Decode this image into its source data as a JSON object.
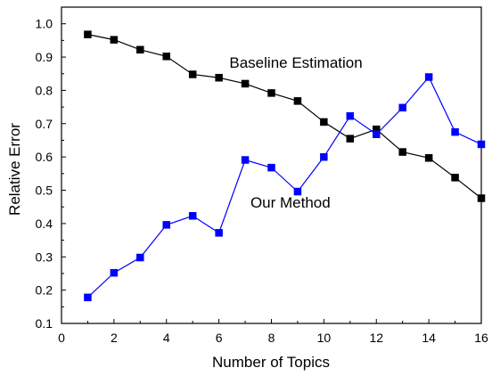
{
  "chart_data": {
    "type": "line",
    "title": "",
    "xlabel": "Number of Topics",
    "ylabel": "Relative Error",
    "xlim": [
      0,
      16
    ],
    "ylim": [
      0.1,
      1.05
    ],
    "x_ticks": [
      0,
      2,
      4,
      6,
      8,
      10,
      12,
      14,
      16
    ],
    "y_ticks": [
      0.1,
      0.2,
      0.3,
      0.4,
      0.5,
      0.6,
      0.7,
      0.8,
      0.9,
      1.0
    ],
    "x_tick_labels": [
      "0",
      "2",
      "4",
      "6",
      "8",
      "10",
      "12",
      "14",
      "16"
    ],
    "y_tick_labels": [
      "0.1",
      "0.2",
      "0.3",
      "0.4",
      "0.5",
      "0.6",
      "0.7",
      "0.8",
      "0.9",
      "1.0"
    ],
    "grid": false,
    "legend": "none",
    "x": [
      1,
      2,
      3,
      4,
      5,
      6,
      7,
      8,
      9,
      10,
      11,
      12,
      13,
      14,
      15,
      16
    ],
    "series": [
      {
        "name": "Baseline Estimation",
        "color": "#000000",
        "marker": "square",
        "values": [
          0.968,
          0.952,
          0.922,
          0.902,
          0.848,
          0.838,
          0.82,
          0.792,
          0.768,
          0.705,
          0.655,
          0.683,
          0.615,
          0.597,
          0.538,
          0.476
        ]
      },
      {
        "name": "Our Method",
        "color": "#0000ff",
        "marker": "square",
        "values": [
          0.178,
          0.252,
          0.298,
          0.396,
          0.423,
          0.372,
          0.591,
          0.568,
          0.496,
          0.6,
          0.723,
          0.668,
          0.748,
          0.84,
          0.675,
          0.638
        ]
      }
    ],
    "annotations": [
      {
        "text": "Baseline Estimation",
        "x": 6.4,
        "y": 0.868
      },
      {
        "text": "Our Method",
        "x": 7.2,
        "y": 0.448
      }
    ]
  }
}
